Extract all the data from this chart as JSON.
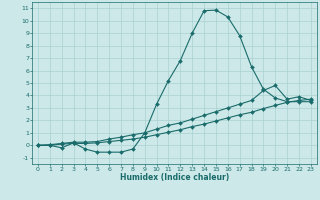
{
  "title": "",
  "xlabel": "Humidex (Indice chaleur)",
  "xlim": [
    -0.5,
    23.5
  ],
  "ylim": [
    -1.5,
    11.5
  ],
  "xticks": [
    0,
    1,
    2,
    3,
    4,
    5,
    6,
    7,
    8,
    9,
    10,
    11,
    12,
    13,
    14,
    15,
    16,
    17,
    18,
    19,
    20,
    21,
    22,
    23
  ],
  "yticks": [
    -1,
    0,
    1,
    2,
    3,
    4,
    5,
    6,
    7,
    8,
    9,
    10,
    11
  ],
  "bg_color": "#cce8e8",
  "line_color": "#1a6b6b",
  "grid_color": "#aad0d0",
  "lines": [
    {
      "x": [
        0,
        1,
        2,
        3,
        4,
        5,
        6,
        7,
        8,
        9,
        10,
        11,
        12,
        13,
        14,
        15,
        16,
        17,
        18,
        19,
        20,
        21,
        22,
        23
      ],
      "y": [
        0.0,
        0.0,
        -0.2,
        0.2,
        -0.3,
        -0.55,
        -0.55,
        -0.55,
        -0.3,
        1.0,
        3.3,
        5.2,
        6.8,
        9.0,
        10.8,
        10.85,
        10.3,
        8.8,
        6.3,
        4.5,
        3.8,
        3.5,
        3.5,
        3.5
      ]
    },
    {
      "x": [
        0,
        1,
        2,
        3,
        4,
        5,
        6,
        7,
        8,
        9,
        10,
        11,
        12,
        13,
        14,
        15,
        16,
        17,
        18,
        19,
        20,
        21,
        22,
        23
      ],
      "y": [
        0.0,
        0.05,
        0.15,
        0.25,
        0.25,
        0.3,
        0.5,
        0.65,
        0.85,
        1.0,
        1.3,
        1.6,
        1.8,
        2.1,
        2.4,
        2.7,
        3.0,
        3.3,
        3.6,
        4.4,
        4.8,
        3.7,
        3.9,
        3.6
      ]
    },
    {
      "x": [
        0,
        1,
        2,
        3,
        4,
        5,
        6,
        7,
        8,
        9,
        10,
        11,
        12,
        13,
        14,
        15,
        16,
        17,
        18,
        19,
        20,
        21,
        22,
        23
      ],
      "y": [
        0.0,
        0.0,
        0.1,
        0.15,
        0.15,
        0.2,
        0.3,
        0.4,
        0.5,
        0.65,
        0.85,
        1.05,
        1.25,
        1.5,
        1.7,
        1.95,
        2.2,
        2.45,
        2.65,
        2.95,
        3.2,
        3.45,
        3.6,
        3.7
      ]
    }
  ]
}
